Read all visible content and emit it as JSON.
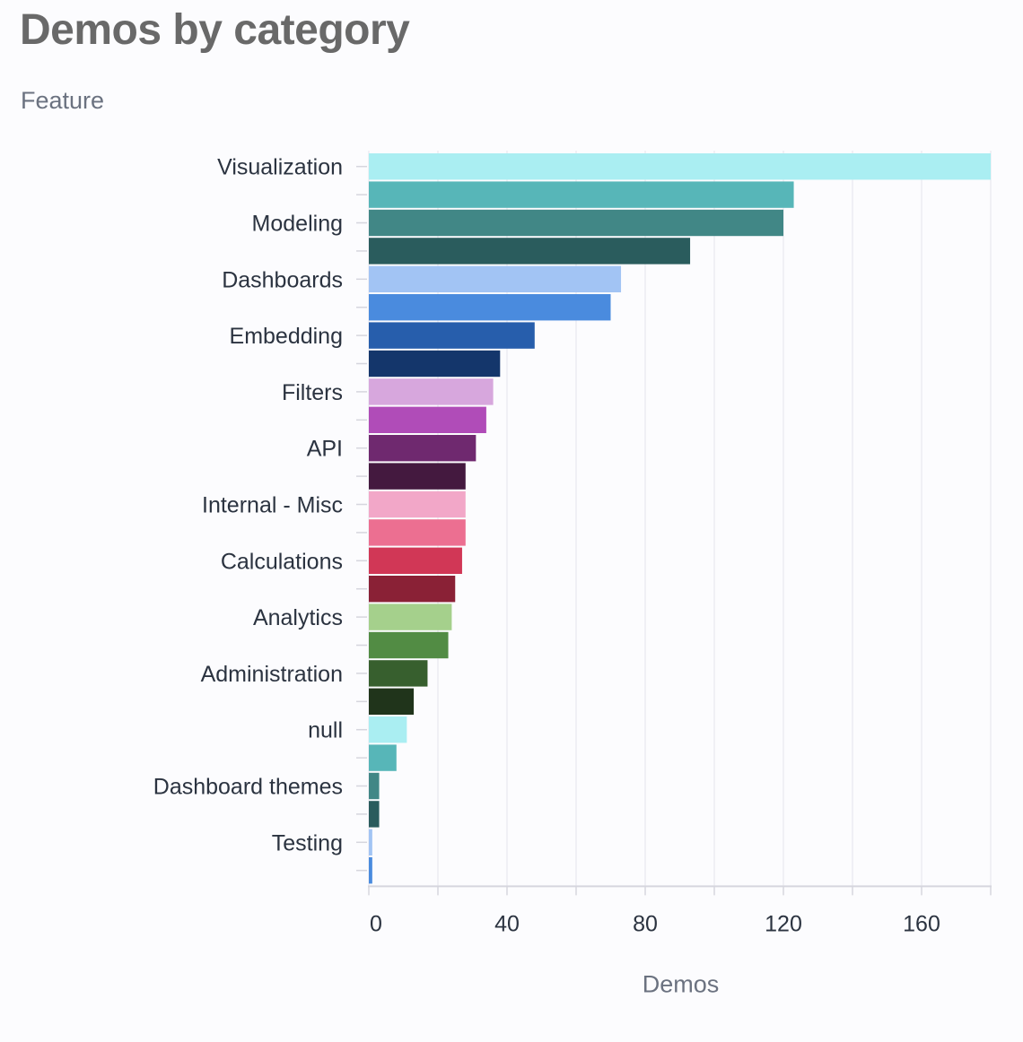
{
  "title": "Demos by category",
  "chart_data": {
    "type": "bar",
    "orientation": "horizontal",
    "title": "Demos by category",
    "ylabel": "Feature",
    "xlabel": "Demos",
    "xlim": [
      0,
      180
    ],
    "xticks": [
      0,
      40,
      80,
      120,
      160
    ],
    "grid": true,
    "legend": "none",
    "categories": [
      "Visualization",
      "",
      "Modeling",
      "",
      "Dashboards",
      "",
      "Embedding",
      "",
      "Filters",
      "",
      "API",
      "",
      "Internal - Misc",
      "",
      "Calculations",
      "",
      "Analytics",
      "",
      "Administration",
      "",
      "null",
      "",
      "Dashboard themes",
      "",
      "Testing",
      ""
    ],
    "values": [
      180,
      123,
      120,
      93,
      73,
      70,
      48,
      38,
      36,
      34,
      31,
      28,
      28,
      28,
      27,
      25,
      24,
      23,
      17,
      13,
      11,
      8,
      3,
      3,
      1,
      1
    ],
    "colors": [
      "#aaeef2",
      "#57b6b8",
      "#418786",
      "#2a5c5d",
      "#a2c4f4",
      "#4a8bde",
      "#275eac",
      "#14366b",
      "#d7a7dd",
      "#b04cb8",
      "#6f296f",
      "#44193f",
      "#f2a7c8",
      "#ec6f91",
      "#d13756",
      "#8a2136",
      "#a5d08c",
      "#528c44",
      "#375f2e",
      "#20341b",
      "#aaeef2",
      "#57b6b8",
      "#418786",
      "#2a5c5d",
      "#a2c4f4",
      "#4a8bde"
    ]
  }
}
